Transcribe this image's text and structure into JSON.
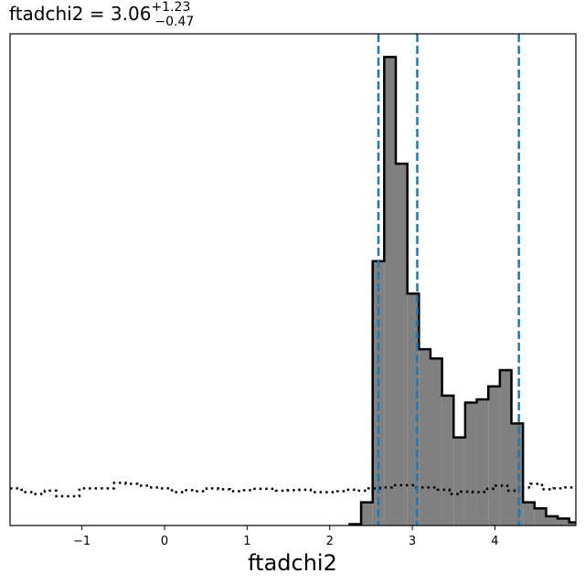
{
  "chart_data": {
    "type": "histogram",
    "title": {
      "param": "ftadchi2",
      "value": "3.06",
      "upper": "+1.23",
      "lower": "−0.47"
    },
    "xlabel": "ftadchi2",
    "ylabel": "",
    "xlim": [
      -1.87,
      4.98
    ],
    "ylim": [
      0,
      10.6
    ],
    "xticks": [
      {
        "value": -1,
        "label": "−1"
      },
      {
        "value": 0,
        "label": "0"
      },
      {
        "value": 1,
        "label": "1"
      },
      {
        "value": 2,
        "label": "2"
      },
      {
        "value": 3,
        "label": "3"
      },
      {
        "value": 4,
        "label": "4"
      }
    ],
    "y_ticks_shown": false,
    "grid": false,
    "series": [
      {
        "style": "filled-step",
        "fill_color": "#808080",
        "edge_color": "#000000",
        "bin_width": 0.14,
        "bins": [
          {
            "x0": 2.24,
            "h": 0.03
          },
          {
            "x0": 2.38,
            "h": 0.5
          },
          {
            "x0": 2.52,
            "h": 5.7
          },
          {
            "x0": 2.66,
            "h": 10.1
          },
          {
            "x0": 2.8,
            "h": 7.8
          },
          {
            "x0": 2.94,
            "h": 5.0
          },
          {
            "x0": 3.08,
            "h": 3.8
          },
          {
            "x0": 3.22,
            "h": 3.6
          },
          {
            "x0": 3.36,
            "h": 2.8
          },
          {
            "x0": 3.5,
            "h": 1.9
          },
          {
            "x0": 3.64,
            "h": 2.65
          },
          {
            "x0": 3.78,
            "h": 2.72
          },
          {
            "x0": 3.92,
            "h": 3.0
          },
          {
            "x0": 4.06,
            "h": 3.35
          },
          {
            "x0": 4.2,
            "h": 2.2
          },
          {
            "x0": 4.34,
            "h": 0.5
          },
          {
            "x0": 4.48,
            "h": 0.37
          },
          {
            "x0": 4.62,
            "h": 0.2
          },
          {
            "x0": 4.76,
            "h": 0.15
          },
          {
            "x0": 4.9,
            "h": 0.07
          }
        ]
      },
      {
        "style": "dotted-step",
        "edge_color": "#000000",
        "bin_width": 0.14,
        "heights": [
          0.8,
          0.72,
          0.68,
          0.75,
          0.63,
          0.63,
          0.8,
          0.8,
          0.8,
          0.92,
          0.9,
          0.86,
          0.82,
          0.8,
          0.72,
          0.76,
          0.74,
          0.8,
          0.78,
          0.74,
          0.76,
          0.79,
          0.79,
          0.75,
          0.76,
          0.77,
          0.72,
          0.72,
          0.74,
          0.77,
          0.75,
          0.8,
          0.82,
          0.87,
          0.87,
          0.82,
          0.82,
          0.77,
          0.68,
          0.73,
          0.72,
          0.79,
          0.86,
          0.75,
          0.82,
          0.9,
          0.78,
          0.8,
          0.82,
          0.76,
          0.8,
          0.74,
          0.7,
          0.6
        ]
      }
    ],
    "vlines": {
      "color": "#1f77b4",
      "style": "dashed",
      "x": [
        2.59,
        3.06,
        4.29
      ]
    }
  }
}
